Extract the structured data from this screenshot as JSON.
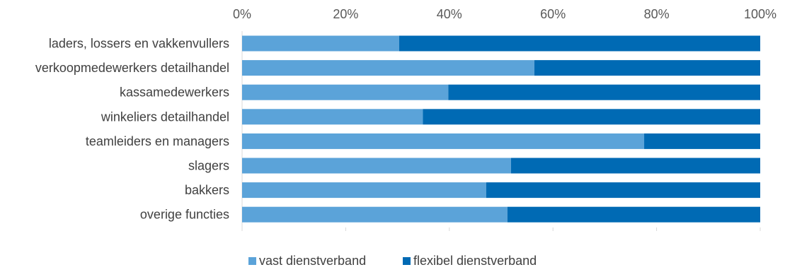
{
  "chart_data": {
    "type": "bar",
    "orientation": "horizontal",
    "stacked": "percent",
    "categories": [
      "laders, lossers en vakkenvullers",
      "verkoopmedewerkers detailhandel",
      "kassamedewerkers",
      "winkeliers detailhandel",
      "teamleiders en managers",
      "slagers",
      "bakkers",
      "overige functies"
    ],
    "series": [
      {
        "name": "vast dienstverband",
        "color": "#5BA3D9",
        "values": [
          30.3,
          56.4,
          39.8,
          34.9,
          77.6,
          51.9,
          47.1,
          51.2
        ]
      },
      {
        "name": "flexibel dienstverband",
        "color": "#006AB4",
        "values": [
          69.7,
          43.6,
          60.2,
          65.1,
          22.4,
          48.1,
          52.9,
          48.8
        ]
      }
    ],
    "x_ticks": [
      "0%",
      "20%",
      "40%",
      "60%",
      "80%",
      "100%"
    ],
    "xlim": [
      0,
      100
    ],
    "x_axis_position": "top",
    "grid": false,
    "legend_position": "bottom"
  }
}
